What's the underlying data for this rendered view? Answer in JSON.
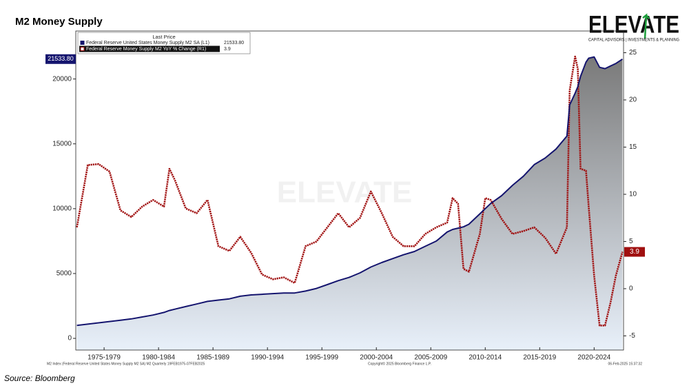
{
  "chart_data": {
    "type": "line",
    "title": "M2 Money Supply",
    "source": "Source: Bloomberg",
    "logo": {
      "name": "ELEVATE",
      "tagline": "CAPITAL ADVISORS | INVESTMENTS & PLANNING"
    },
    "legend_title": "Last Price",
    "legend_position": "top-left",
    "footer": {
      "left": "M2 Index (Federal Reserve United States Money Supply M2 SA) M2  Quarterly 19FEB1975-07FEB2025",
      "center": "Copyright© 2025 Bloomberg Finance L.P.",
      "right": "06-Feb-2025 15:37:32"
    },
    "x": [
      1975,
      1976,
      1977,
      1978,
      1979,
      1980,
      1981,
      1982,
      1983,
      1983.5,
      1984,
      1985,
      1986,
      1987,
      1988,
      1989,
      1990,
      1991,
      1992,
      1993,
      1994,
      1995,
      1996,
      1997,
      1998,
      1999,
      2000,
      2001,
      2002,
      2003,
      2004,
      2005,
      2006,
      2007,
      2008,
      2009,
      2009.5,
      2010,
      2010.5,
      2011,
      2012,
      2012.5,
      2013,
      2014,
      2015,
      2016,
      2017,
      2018,
      2019,
      2020,
      2020.25,
      2020.75,
      2021,
      2021.25,
      2021.75,
      2022,
      2022.5,
      2023,
      2023.5,
      2024,
      2024.5,
      2025.1
    ],
    "series": [
      {
        "name": "Federal Reserve United States Money Supply M2 SA  (L1)",
        "color": "#14146e",
        "axis": "y",
        "values": [
          1000,
          1100,
          1200,
          1300,
          1400,
          1500,
          1650,
          1800,
          2000,
          2150,
          2250,
          2450,
          2650,
          2850,
          2950,
          3050,
          3250,
          3350,
          3400,
          3450,
          3500,
          3500,
          3650,
          3850,
          4150,
          4450,
          4700,
          5050,
          5500,
          5850,
          6150,
          6450,
          6700,
          7100,
          7500,
          8200,
          8400,
          8500,
          8600,
          8800,
          9600,
          10000,
          10400,
          11000,
          11800,
          12500,
          13400,
          13900,
          14600,
          15600,
          18000,
          18900,
          19400,
          20200,
          21300,
          21600,
          21700,
          20900,
          20800,
          21000,
          21200,
          21533.8
        ],
        "value_labels": [
          null,
          null,
          null,
          null,
          null,
          null,
          null,
          null,
          null,
          null,
          null,
          null,
          null,
          null,
          null,
          null,
          null,
          null,
          null,
          null,
          null,
          null,
          null,
          null,
          null,
          null,
          null,
          null,
          null,
          null,
          null,
          null,
          null,
          null,
          null,
          null,
          null,
          null,
          null,
          null,
          null,
          null,
          null,
          null,
          null,
          null,
          null,
          null,
          null,
          null,
          null,
          null,
          null,
          null,
          null,
          null,
          null,
          null,
          null,
          null,
          null,
          "21533.80"
        ]
      },
      {
        "name": "Federal Reserve Money Supply M2 YoY % Change  (R1)",
        "color": "#a01010",
        "axis": "y2",
        "values": [
          6.5,
          13.1,
          13.2,
          12.4,
          8.3,
          7.6,
          8.7,
          9.4,
          8.7,
          12.7,
          11.5,
          8.5,
          8.0,
          9.4,
          4.5,
          4.0,
          5.5,
          3.8,
          1.5,
          1.0,
          1.2,
          0.6,
          4.5,
          5.0,
          6.5,
          8.0,
          6.5,
          7.5,
          10.3,
          8.0,
          5.5,
          4.5,
          4.5,
          5.8,
          6.5,
          7.0,
          9.6,
          9.0,
          2.1,
          1.8,
          5.8,
          9.6,
          9.4,
          7.4,
          5.8,
          6.1,
          6.5,
          5.4,
          3.7,
          6.5,
          21.0,
          24.6,
          23.3,
          12.7,
          12.5,
          8.7,
          1.4,
          -3.9,
          -3.9,
          -1.5,
          1.4,
          3.9
        ]
      }
    ],
    "xlim": [
      1974.9,
      2025.2
    ],
    "xticks": [
      {
        "value": 1977.5,
        "label": "1975-1979"
      },
      {
        "value": 1982.5,
        "label": "1980-1984"
      },
      {
        "value": 1987.5,
        "label": "1985-1989"
      },
      {
        "value": 1992.5,
        "label": "1990-1994"
      },
      {
        "value": 1997.5,
        "label": "1995-1999"
      },
      {
        "value": 2002.5,
        "label": "2000-2004"
      },
      {
        "value": 2007.5,
        "label": "2005-2009"
      },
      {
        "value": 2012.5,
        "label": "2010-2014"
      },
      {
        "value": 2017.5,
        "label": "2015-2019"
      },
      {
        "value": 2022.5,
        "label": "2020-2024"
      }
    ],
    "ylim": [
      -900,
      23700
    ],
    "yticks": [
      0,
      5000,
      10000,
      15000,
      20000
    ],
    "y2lim": [
      -6.5,
      27.3
    ],
    "y2ticks": [
      -5,
      0,
      5,
      10,
      15,
      20,
      25
    ],
    "grid": false
  }
}
